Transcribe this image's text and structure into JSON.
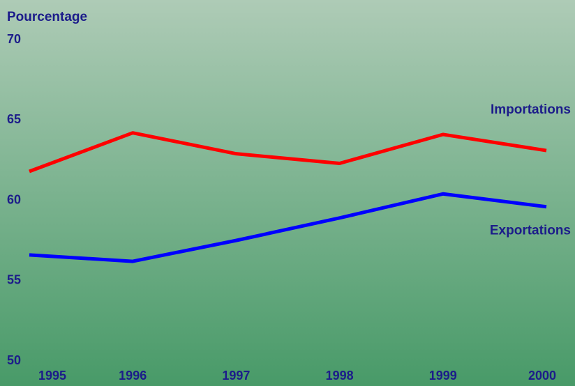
{
  "chart_data": {
    "type": "line",
    "y_label": "Pourcentage",
    "categories": [
      "1995",
      "1996",
      "1997",
      "1998",
      "1999",
      "2000"
    ],
    "series": [
      {
        "name": "Importations",
        "color": "#ff0000",
        "values": [
          61.8,
          64.2,
          62.9,
          62.3,
          64.1,
          63.1
        ]
      },
      {
        "name": "Exportations",
        "color": "#0000ff",
        "values": [
          56.6,
          56.2,
          57.5,
          58.9,
          60.4,
          59.6
        ]
      }
    ],
    "ylim": [
      50,
      70
    ],
    "yticks": [
      50,
      55,
      60,
      65,
      70
    ],
    "grid": false
  }
}
